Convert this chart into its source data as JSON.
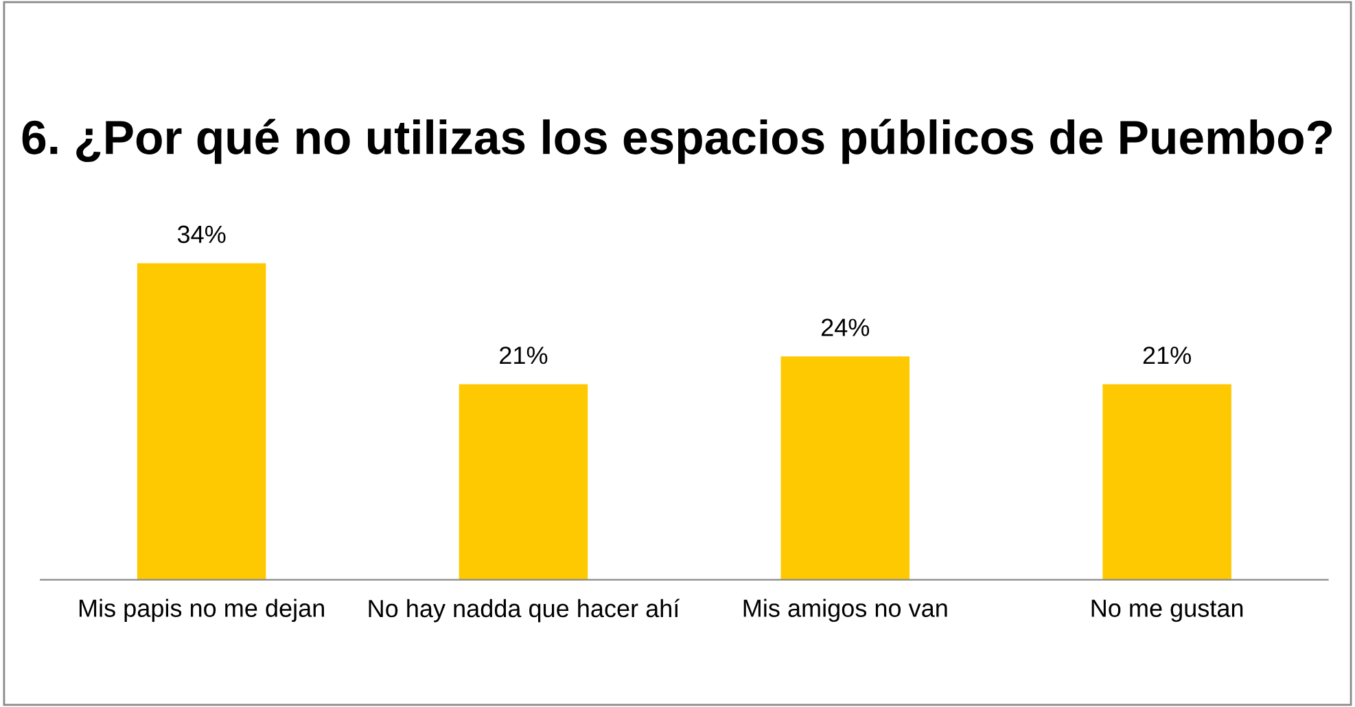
{
  "chart_data": {
    "type": "bar",
    "title": "6. ¿Por qué no utilizas los espacios públicos de Puembo?",
    "categories": [
      "Mis papis no me dejan",
      "No hay nadda que hacer ahí",
      "Mis amigos no van",
      "No me gustan"
    ],
    "values": [
      34,
      21,
      24,
      21
    ],
    "value_labels": [
      "34%",
      "21%",
      "24%",
      "21%"
    ],
    "color": "#ffc901",
    "grid": false,
    "legend": false
  }
}
